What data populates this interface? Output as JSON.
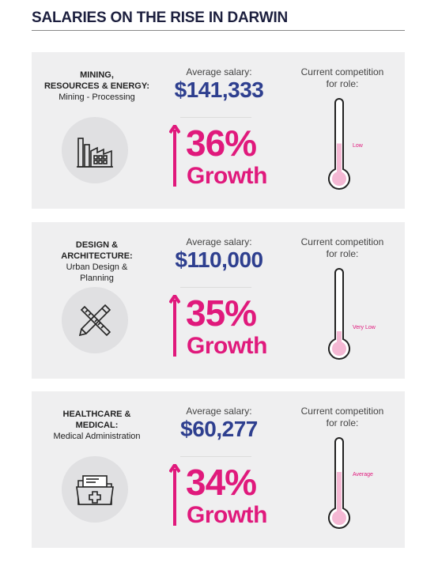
{
  "title": "SALARIES ON THE RISE IN DARWIN",
  "labels": {
    "average_salary": "Average salary:",
    "competition_line1": "Current competition",
    "competition_line2": "for role:",
    "growth": "Growth"
  },
  "colors": {
    "salary": "#2e3f8f",
    "growth": "#e0197c",
    "panel_bg": "#efeff0",
    "thermometer_fill": "#f5b8d4"
  },
  "panels": [
    {
      "sector_lines": [
        "MINING,",
        "RESOURCES & ENERGY:"
      ],
      "subsector_lines": [
        "Mining - Processing"
      ],
      "icon": "factory-icon",
      "salary": "$141,333",
      "growth_pct": "36%",
      "competition": "Low",
      "competition_level": 0.45
    },
    {
      "sector_lines": [
        "DESIGN &",
        "ARCHITECTURE:"
      ],
      "subsector_lines": [
        "Urban Design &",
        "Planning"
      ],
      "icon": "pencil-ruler-icon",
      "salary": "$110,000",
      "growth_pct": "35%",
      "competition": "Very Low",
      "competition_level": 0.2
    },
    {
      "sector_lines": [
        "HEALTHCARE &",
        "MEDICAL:"
      ],
      "subsector_lines": [
        "Medical Administration"
      ],
      "icon": "medical-folder-icon",
      "salary": "$60,277",
      "growth_pct": "34%",
      "competition": "Average",
      "competition_level": 0.6
    }
  ]
}
